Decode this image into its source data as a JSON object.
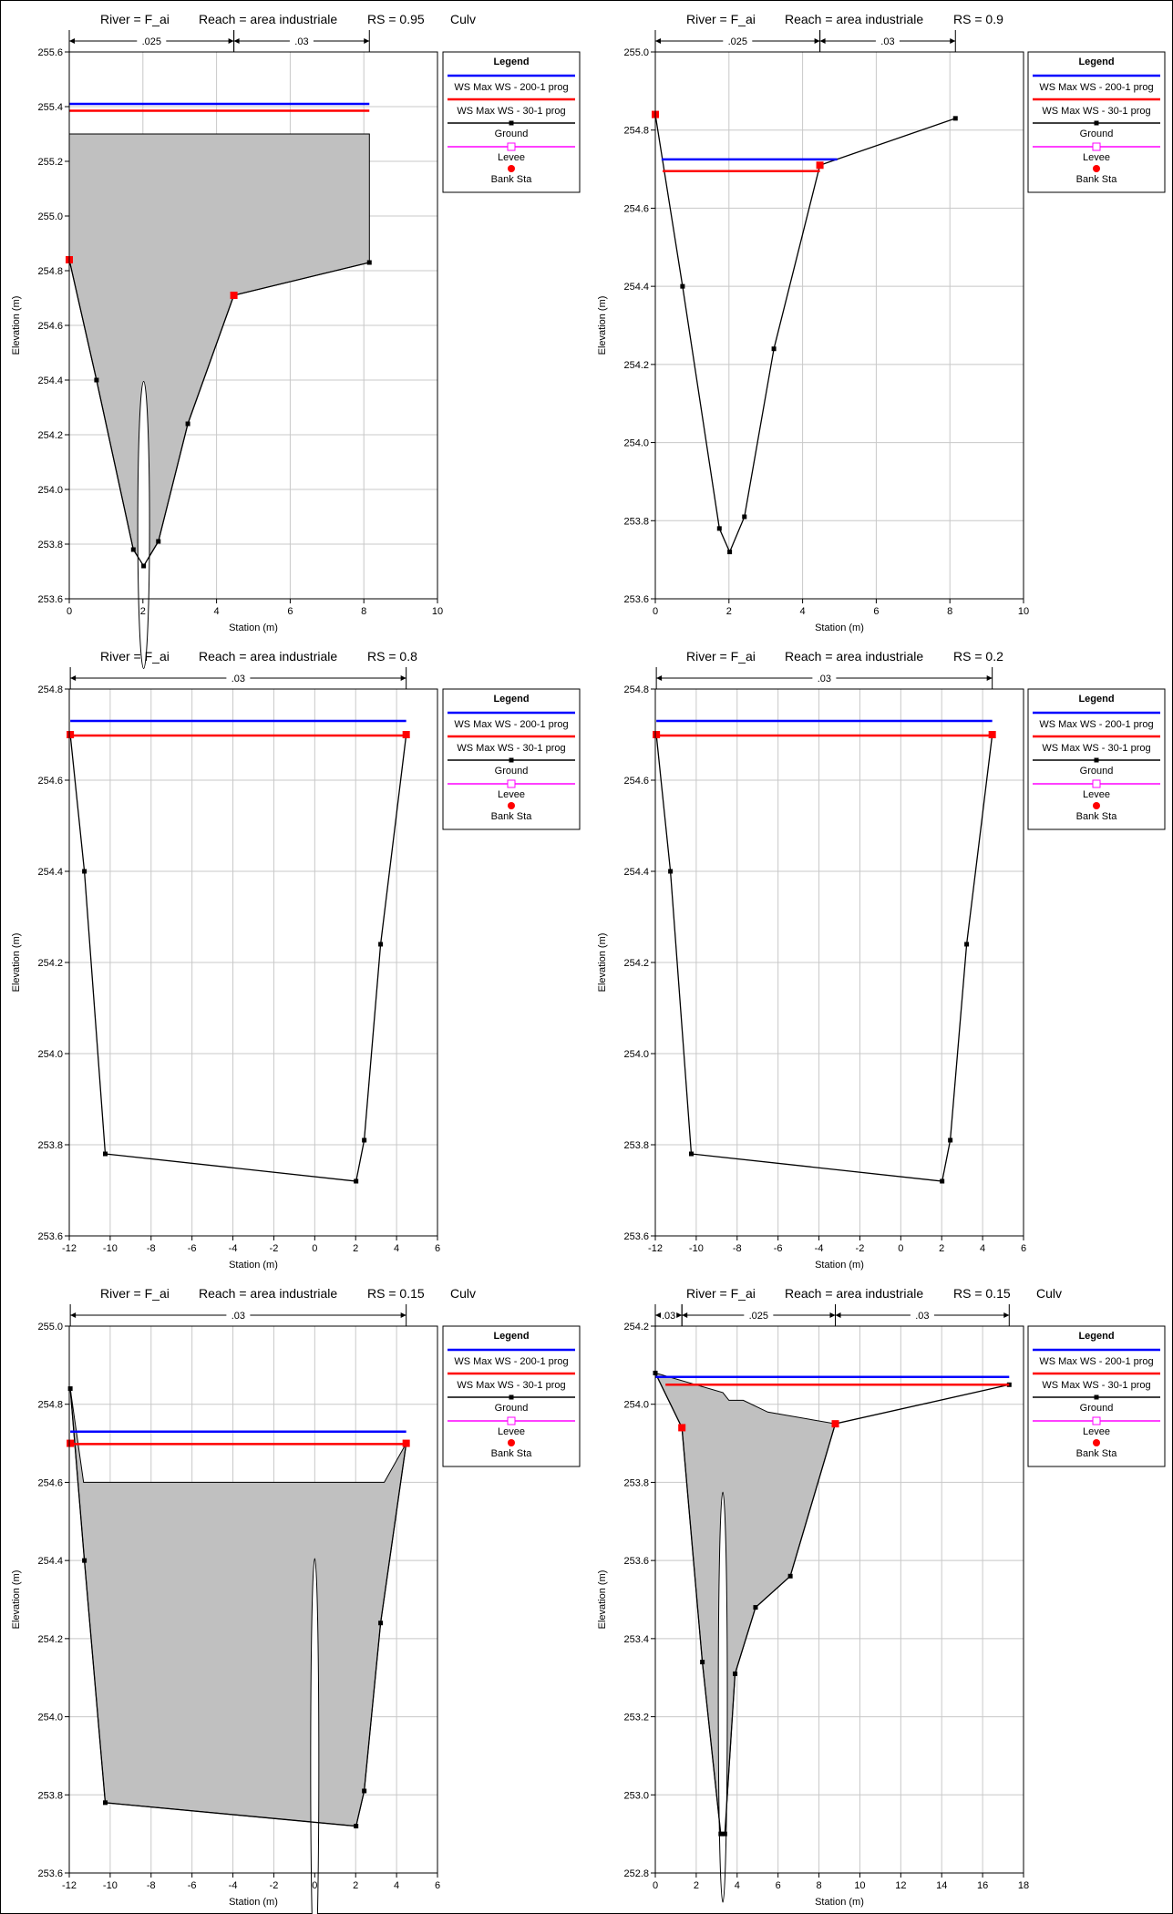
{
  "legend_entries": [
    {
      "label": "WS Max WS - 200-1 prog",
      "color": "#0000ff",
      "marker": "none"
    },
    {
      "label": "WS Max WS - 30-1 prog",
      "color": "#ff0000",
      "marker": "none"
    },
    {
      "label": "Ground",
      "color": "#000000",
      "marker": "square"
    },
    {
      "label": "Levee",
      "color": "#ff00ff",
      "marker": "open-square"
    },
    {
      "label": "Bank Sta",
      "color": "#ff0000",
      "marker": "dot"
    }
  ],
  "colors": {
    "ws_200": "#0000ff",
    "ws_30": "#ff0000",
    "ground": "#000000",
    "levee": "#ff00ff",
    "bank": "#ff0000",
    "obstruction": "#c0c0c0",
    "grid": "#c8c8c8"
  },
  "chart_data": [
    {
      "type": "line",
      "title_parts": {
        "river": "River = F_ai",
        "reach": "Reach = area industriale",
        "rs": "RS = 0.95",
        "extra": "Culv"
      },
      "xlabel": "Station (m)",
      "ylabel": "Elevation (m)",
      "xlim": [
        0,
        10
      ],
      "ylim": [
        253.6,
        255.6
      ],
      "xticks": [
        0,
        2,
        4,
        6,
        8,
        10
      ],
      "yticks": [
        253.6,
        253.8,
        254.0,
        254.2,
        254.4,
        254.6,
        254.8,
        255.0,
        255.2,
        255.4,
        255.6
      ],
      "ydecimals": 1,
      "grid": true,
      "legend_title": "Legend",
      "legend_placement": "right",
      "ground": [
        [
          0,
          254.84
        ],
        [
          0.74,
          254.4
        ],
        [
          1.74,
          253.78
        ],
        [
          2.02,
          253.72
        ],
        [
          2.42,
          253.81
        ],
        [
          3.22,
          254.24
        ],
        [
          4.47,
          254.71
        ],
        [
          8.15,
          254.83
        ]
      ],
      "bank_stations": [
        [
          0,
          254.84
        ],
        [
          4.47,
          254.71
        ]
      ],
      "ws_200": [
        [
          0,
          255.41
        ],
        [
          8.15,
          255.41
        ]
      ],
      "ws_30": [
        [
          0,
          255.385
        ],
        [
          8.15,
          255.385
        ]
      ],
      "obstruction": [
        [
          0,
          255.3
        ],
        [
          8.15,
          255.3
        ],
        [
          8.15,
          254.83
        ],
        [
          4.47,
          254.71
        ],
        [
          3.22,
          254.24
        ],
        [
          2.42,
          253.81
        ],
        [
          2.02,
          253.72
        ],
        [
          1.74,
          253.78
        ],
        [
          0.74,
          254.4
        ],
        [
          0,
          254.84
        ]
      ],
      "ellipse": {
        "cx": 2.02,
        "cy": 253.87,
        "rx": 0.16,
        "ry": 0.15
      },
      "n_values": [
        {
          "label": ".025",
          "from": 0,
          "to": 4.47
        },
        {
          "label": ".03",
          "from": 4.47,
          "to": 8.15
        }
      ]
    },
    {
      "type": "line",
      "title_parts": {
        "river": "River = F_ai",
        "reach": "Reach = area industriale",
        "rs": "RS = 0.9",
        "extra": ""
      },
      "xlabel": "Station (m)",
      "ylabel": "Elevation (m)",
      "xlim": [
        0,
        10
      ],
      "ylim": [
        253.6,
        255.0
      ],
      "xticks": [
        0,
        2,
        4,
        6,
        8,
        10
      ],
      "yticks": [
        253.6,
        253.8,
        254.0,
        254.2,
        254.4,
        254.6,
        254.8,
        255.0
      ],
      "ydecimals": 1,
      "grid": true,
      "legend_title": "Legend",
      "legend_placement": "right",
      "ground": [
        [
          0,
          254.84
        ],
        [
          0.74,
          254.4
        ],
        [
          1.74,
          253.78
        ],
        [
          2.02,
          253.72
        ],
        [
          2.42,
          253.81
        ],
        [
          3.22,
          254.24
        ],
        [
          4.47,
          254.71
        ],
        [
          8.15,
          254.83
        ]
      ],
      "bank_stations": [
        [
          0,
          254.84
        ],
        [
          4.47,
          254.71
        ]
      ],
      "ws_200": [
        [
          0.17,
          254.725
        ],
        [
          4.94,
          254.725
        ]
      ],
      "ws_30": [
        [
          0.2,
          254.695
        ],
        [
          4.47,
          254.695
        ]
      ],
      "obstruction": null,
      "ellipse": null,
      "n_values": [
        {
          "label": ".025",
          "from": 0,
          "to": 4.47
        },
        {
          "label": ".03",
          "from": 4.47,
          "to": 8.15
        }
      ]
    },
    {
      "type": "line",
      "title_parts": {
        "river": "River = F_ai",
        "reach": "Reach = area industriale",
        "rs": "RS = 0.8",
        "extra": ""
      },
      "xlabel": "Station (m)",
      "ylabel": "Elevation (m)",
      "xlim": [
        -12,
        6
      ],
      "ylim": [
        253.6,
        254.8
      ],
      "xticks": [
        -12,
        -10,
        -8,
        -6,
        -4,
        -2,
        0,
        2,
        4,
        6
      ],
      "yticks": [
        253.6,
        253.8,
        254.0,
        254.2,
        254.4,
        254.6,
        254.8
      ],
      "ydecimals": 1,
      "grid": true,
      "legend_title": "Legend",
      "legend_placement": "right",
      "ground": [
        [
          -11.95,
          254.7
        ],
        [
          -11.26,
          254.4
        ],
        [
          -10.24,
          253.78
        ],
        [
          2.02,
          253.72
        ],
        [
          2.42,
          253.81
        ],
        [
          3.22,
          254.24
        ],
        [
          4.47,
          254.7
        ]
      ],
      "bank_stations": [
        [
          -11.95,
          254.7
        ],
        [
          4.47,
          254.7
        ]
      ],
      "ws_200": [
        [
          -11.95,
          254.73
        ],
        [
          4.47,
          254.73
        ]
      ],
      "ws_30": [
        [
          -11.95,
          254.698
        ],
        [
          4.47,
          254.698
        ]
      ],
      "obstruction": null,
      "ellipse": null,
      "n_values": [
        {
          "label": ".03",
          "from": -11.95,
          "to": 4.47
        }
      ]
    },
    {
      "type": "line",
      "title_parts": {
        "river": "River = F_ai",
        "reach": "Reach = area industriale",
        "rs": "RS = 0.2",
        "extra": ""
      },
      "xlabel": "Station (m)",
      "ylabel": "Elevation (m)",
      "xlim": [
        -12,
        6
      ],
      "ylim": [
        253.6,
        254.8
      ],
      "xticks": [
        -12,
        -10,
        -8,
        -6,
        -4,
        -2,
        0,
        2,
        4,
        6
      ],
      "yticks": [
        253.6,
        253.8,
        254.0,
        254.2,
        254.4,
        254.6,
        254.8
      ],
      "ydecimals": 1,
      "grid": true,
      "legend_title": "Legend",
      "legend_placement": "right",
      "ground": [
        [
          -11.95,
          254.7
        ],
        [
          -11.26,
          254.4
        ],
        [
          -10.24,
          253.78
        ],
        [
          2.02,
          253.72
        ],
        [
          2.42,
          253.81
        ],
        [
          3.22,
          254.24
        ],
        [
          4.47,
          254.7
        ]
      ],
      "bank_stations": [
        [
          -11.95,
          254.7
        ],
        [
          4.47,
          254.7
        ]
      ],
      "ws_200": [
        [
          -11.95,
          254.73
        ],
        [
          4.47,
          254.73
        ]
      ],
      "ws_30": [
        [
          -11.95,
          254.698
        ],
        [
          4.47,
          254.698
        ]
      ],
      "obstruction": null,
      "ellipse": null,
      "n_values": [
        {
          "label": ".03",
          "from": -11.95,
          "to": 4.47
        }
      ]
    },
    {
      "type": "line",
      "title_parts": {
        "river": "River = F_ai",
        "reach": "Reach = area industriale",
        "rs": "RS = 0.15",
        "extra": "Culv"
      },
      "xlabel": "Station (m)",
      "ylabel": "Elevation (m)",
      "xlim": [
        -12,
        6
      ],
      "ylim": [
        253.6,
        255.0
      ],
      "xticks": [
        -12,
        -10,
        -8,
        -6,
        -4,
        -2,
        0,
        2,
        4,
        6
      ],
      "yticks": [
        253.6,
        253.8,
        254.0,
        254.2,
        254.4,
        254.6,
        254.8,
        255.0
      ],
      "ydecimals": 1,
      "grid": true,
      "legend_title": "Legend",
      "legend_placement": "right",
      "ground": [
        [
          -11.95,
          254.84
        ],
        [
          -11.26,
          254.4
        ],
        [
          -10.24,
          253.78
        ],
        [
          2.02,
          253.72
        ],
        [
          2.42,
          253.81
        ],
        [
          3.22,
          254.24
        ],
        [
          4.47,
          254.7
        ]
      ],
      "bank_stations": [
        [
          -11.95,
          254.7
        ],
        [
          4.47,
          254.7
        ]
      ],
      "ws_200": [
        [
          -11.95,
          254.73
        ],
        [
          4.47,
          254.73
        ]
      ],
      "ws_30": [
        [
          -11.95,
          254.698
        ],
        [
          4.47,
          254.698
        ]
      ],
      "obstruction": [
        [
          -11.95,
          254.84
        ],
        [
          -11.3,
          254.6
        ],
        [
          3.4,
          254.6
        ],
        [
          4.47,
          254.7
        ],
        [
          3.22,
          254.24
        ],
        [
          2.42,
          253.81
        ],
        [
          2.02,
          253.72
        ],
        [
          -10.24,
          253.78
        ],
        [
          -11.26,
          254.4
        ]
      ],
      "ellipse": {
        "cx": 0.0,
        "cy": 253.88,
        "rx": 0.2,
        "ry": 0.15
      },
      "n_values": [
        {
          "label": ".03",
          "from": -11.95,
          "to": 4.47
        }
      ]
    },
    {
      "type": "line",
      "title_parts": {
        "river": "River = F_ai",
        "reach": "Reach = area industriale",
        "rs": "RS = 0.15",
        "extra": "Culv"
      },
      "xlabel": "Station (m)",
      "ylabel": "Elevation (m)",
      "xlim": [
        0,
        18
      ],
      "ylim": [
        252.8,
        254.2
      ],
      "xticks": [
        0,
        2,
        4,
        6,
        8,
        10,
        12,
        14,
        16,
        18
      ],
      "yticks": [
        252.8,
        253.0,
        253.2,
        253.4,
        253.6,
        253.8,
        254.0,
        254.2
      ],
      "ydecimals": 1,
      "grid": true,
      "legend_title": "Legend",
      "legend_placement": "right",
      "ground": [
        [
          0,
          254.08
        ],
        [
          1.3,
          253.94
        ],
        [
          2.3,
          253.34
        ],
        [
          3.2,
          252.9
        ],
        [
          3.4,
          252.9
        ],
        [
          3.9,
          253.31
        ],
        [
          4.9,
          253.48
        ],
        [
          6.6,
          253.56
        ],
        [
          8.8,
          253.95
        ],
        [
          17.3,
          254.05
        ]
      ],
      "bank_stations": [
        [
          1.3,
          253.94
        ],
        [
          8.8,
          253.95
        ]
      ],
      "ws_200": [
        [
          0,
          254.07
        ],
        [
          17.3,
          254.07
        ]
      ],
      "ws_30": [
        [
          0.5,
          254.05
        ],
        [
          17.3,
          254.05
        ]
      ],
      "obstruction": [
        [
          0,
          254.08
        ],
        [
          3.3,
          254.03
        ],
        [
          3.6,
          254.01
        ],
        [
          4.3,
          254.01
        ],
        [
          5.5,
          253.98
        ],
        [
          8.8,
          253.95
        ],
        [
          6.6,
          253.56
        ],
        [
          4.9,
          253.48
        ],
        [
          3.9,
          253.31
        ],
        [
          3.4,
          252.9
        ],
        [
          3.2,
          252.9
        ],
        [
          2.3,
          253.34
        ],
        [
          1.3,
          253.94
        ]
      ],
      "ellipse": {
        "cx": 3.3,
        "cy": 253.25,
        "rx": 0.22,
        "ry": 0.15
      },
      "n_values": [
        {
          "label": ".03",
          "from": 0,
          "to": 1.3
        },
        {
          "label": ".025",
          "from": 1.3,
          "to": 8.8
        },
        {
          "label": ".03",
          "from": 8.8,
          "to": 17.3
        }
      ]
    }
  ]
}
